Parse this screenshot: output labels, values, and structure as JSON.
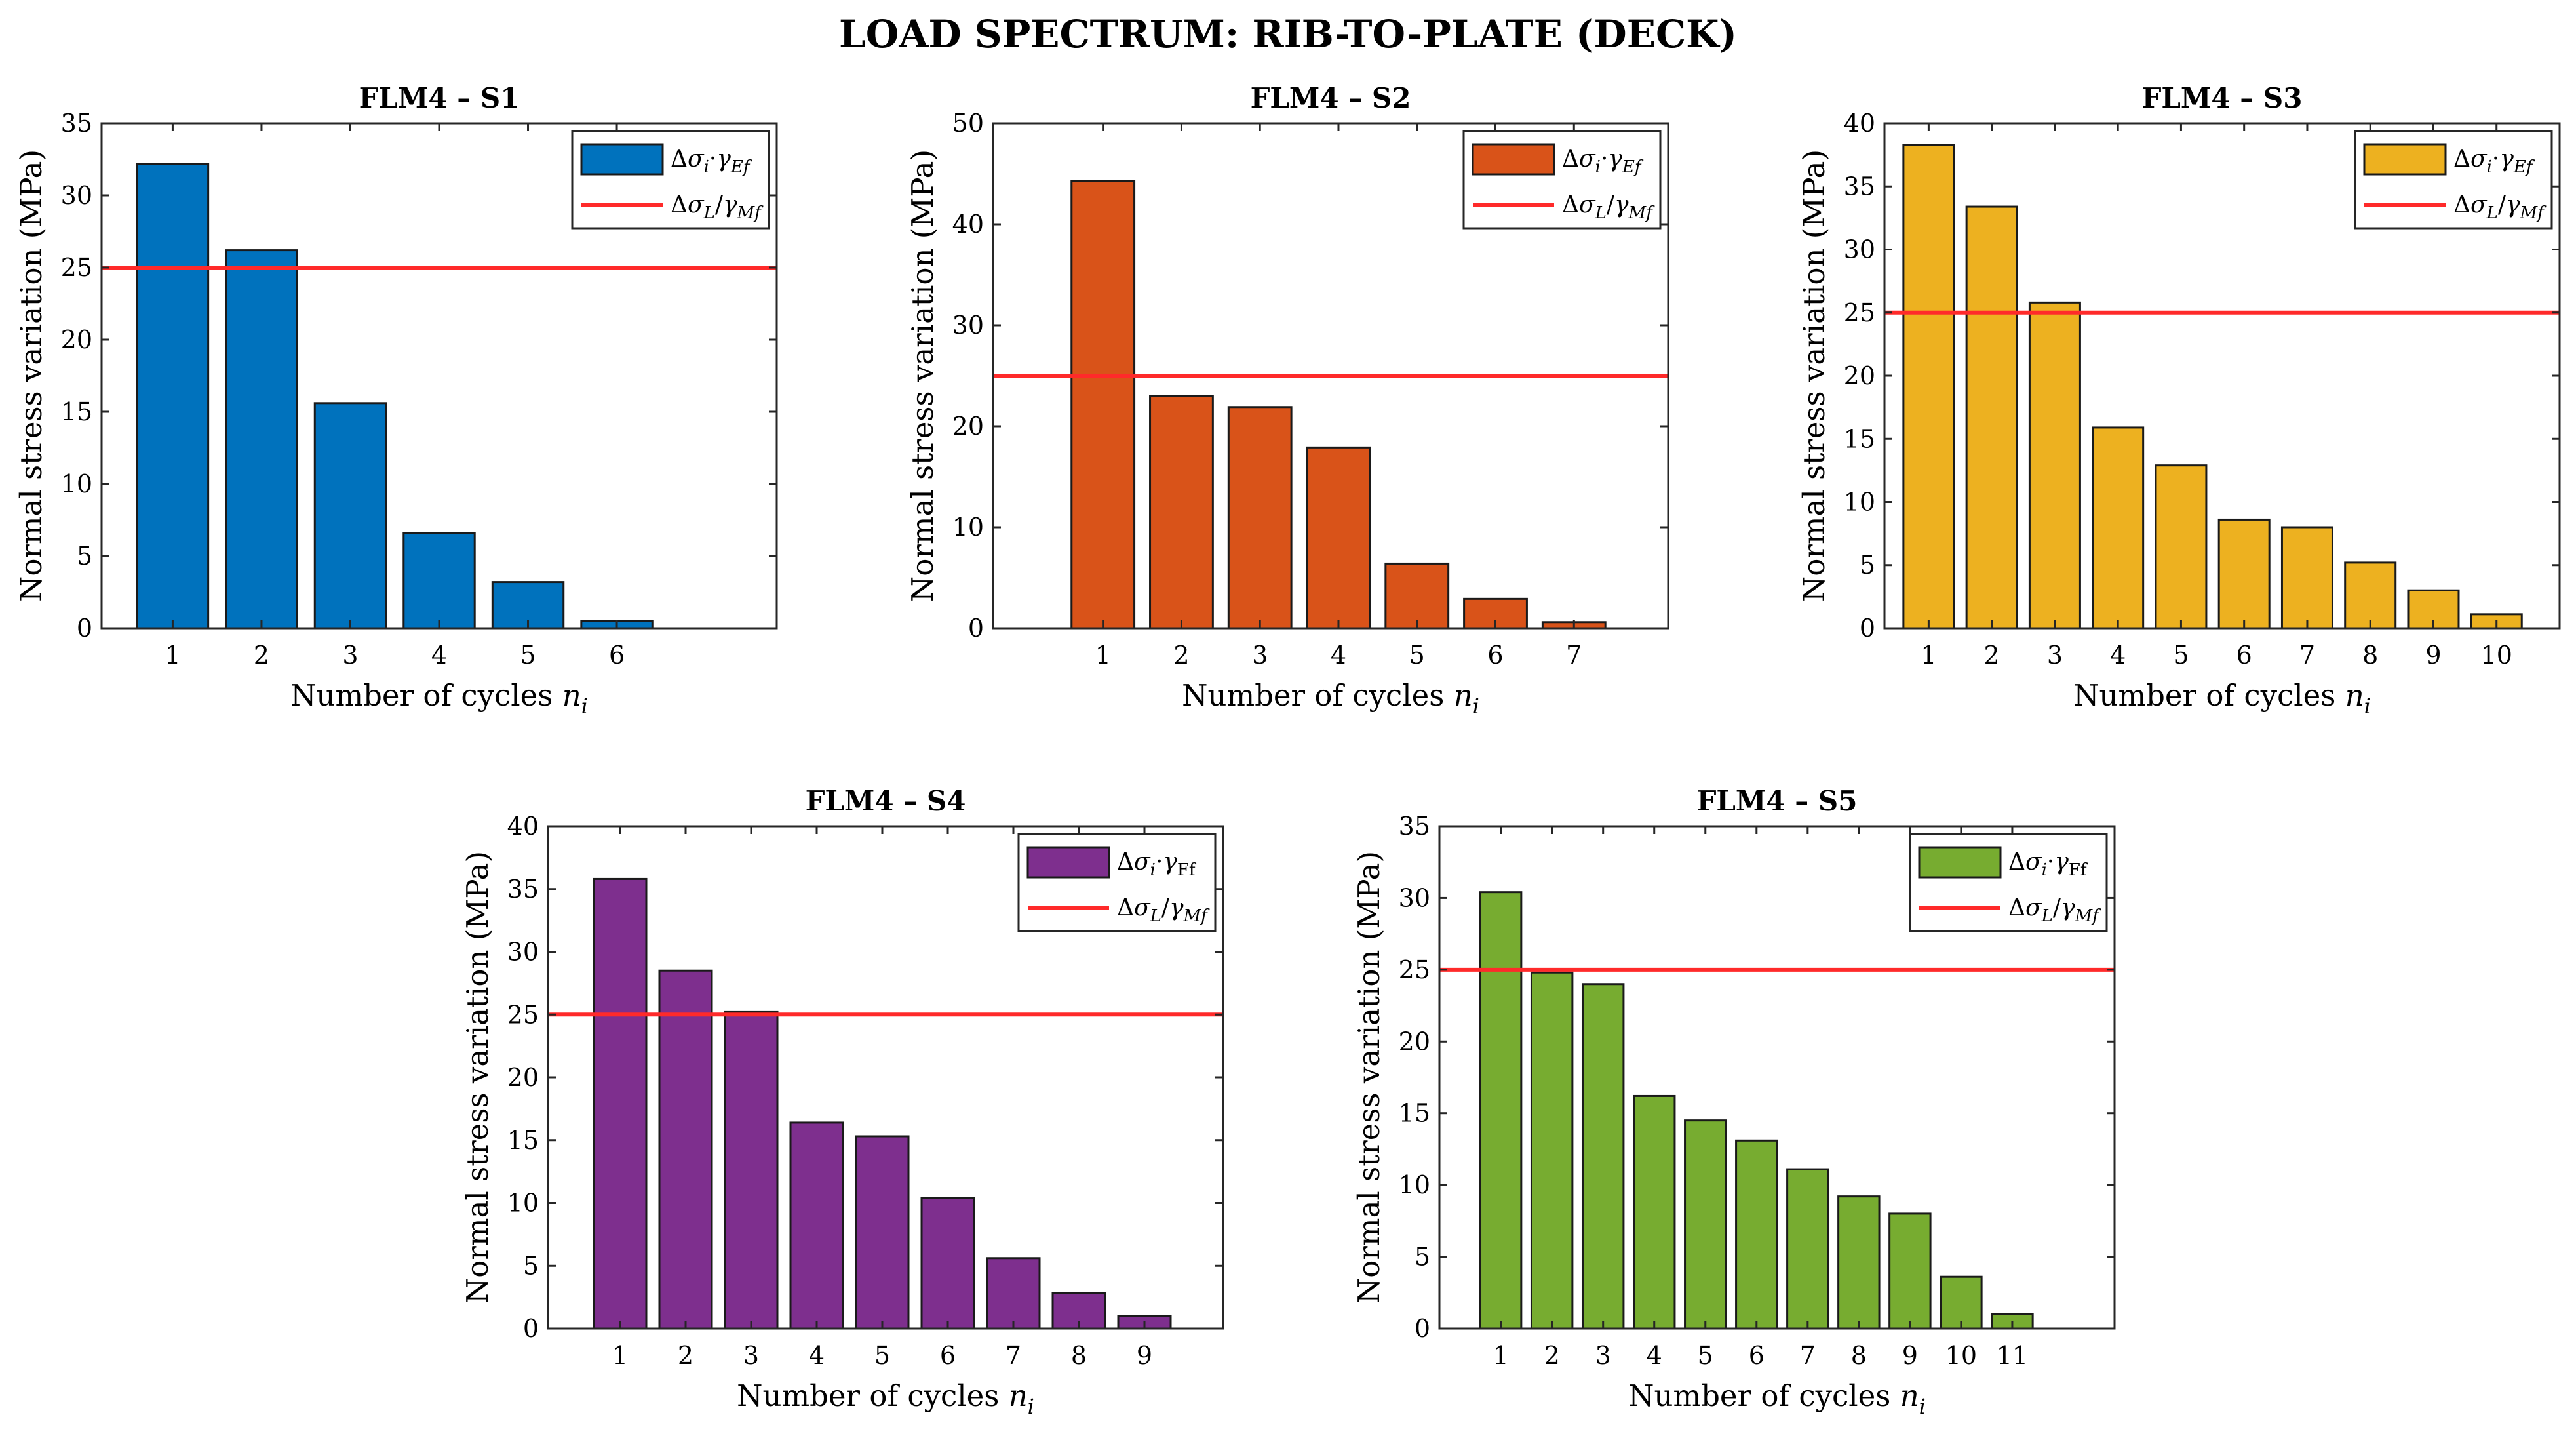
{
  "title": "LOAD SPECTRUM: RIB-TO-PLATE (DECK)",
  "legend": {
    "bar_delta": "Δ",
    "bar_sigma": "σ",
    "bar_sub_i": "i",
    "bar_dot": "·",
    "bar_gamma": "γ",
    "bar_sub_Ef": "Ef",
    "bar_sub_Ff": "Ff",
    "line_delta": "Δ",
    "line_sigma": "σ",
    "line_sub_L": "L",
    "line_slash": "/",
    "line_gamma": "γ",
    "line_sub_Mf": "Mf"
  },
  "chart_data": [
    {
      "type": "bar",
      "title": "FLM4 – S1",
      "xlabel": "Number of cycles",
      "xlabel_var": "n",
      "xlabel_sub": "i",
      "ylabel": "Normal stress variation (MPa)",
      "categories": [
        "1",
        "2",
        "3",
        "4",
        "5",
        "6"
      ],
      "values": [
        32.2,
        26.2,
        15.6,
        6.6,
        3.2,
        0.5
      ],
      "ylim": [
        0,
        35
      ],
      "yticks": [
        "0",
        "5",
        "10",
        "15",
        "20",
        "25",
        "30",
        "35"
      ],
      "xlim": [
        0.2,
        7.8
      ],
      "threshold": 25,
      "color": "#0072BD",
      "legend_sub": "Ef"
    },
    {
      "type": "bar",
      "title": "FLM4 – S2",
      "xlabel": "Number of cycles",
      "xlabel_var": "n",
      "xlabel_sub": "i",
      "ylabel": "Normal stress variation (MPa)",
      "categories": [
        "1",
        "2",
        "3",
        "4",
        "5",
        "6",
        "7"
      ],
      "values": [
        44.3,
        23.0,
        21.9,
        17.9,
        6.4,
        2.9,
        0.6
      ],
      "ylim": [
        0,
        50
      ],
      "yticks": [
        "0",
        "10",
        "20",
        "30",
        "40",
        "50"
      ],
      "xlim": [
        -0.4,
        8.2
      ],
      "threshold": 25,
      "color": "#D95319",
      "legend_sub": "Ef"
    },
    {
      "type": "bar",
      "title": "FLM4 – S3",
      "xlabel": "Number of cycles",
      "xlabel_var": "n",
      "xlabel_sub": "i",
      "ylabel": "Normal stress variation (MPa)",
      "categories": [
        "1",
        "2",
        "3",
        "4",
        "5",
        "6",
        "7",
        "8",
        "9",
        "10"
      ],
      "values": [
        38.3,
        33.4,
        25.8,
        15.9,
        12.9,
        8.6,
        8.0,
        5.2,
        3.0,
        1.1
      ],
      "ylim": [
        0,
        40
      ],
      "yticks": [
        "0",
        "5",
        "10",
        "15",
        "20",
        "25",
        "30",
        "35",
        "40"
      ],
      "xlim": [
        0.3,
        11.0
      ],
      "threshold": 25,
      "color": "#EDB120",
      "legend_sub": "Ef"
    },
    {
      "type": "bar",
      "title": "FLM4 – S4",
      "xlabel": "Number of cycles",
      "xlabel_var": "n",
      "xlabel_sub": "i",
      "ylabel": "Normal stress variation (MPa)",
      "categories": [
        "1",
        "2",
        "3",
        "4",
        "5",
        "6",
        "7",
        "8",
        "9"
      ],
      "values": [
        35.8,
        28.5,
        25.2,
        16.4,
        15.3,
        10.4,
        5.6,
        2.8,
        1.0
      ],
      "ylim": [
        0,
        40
      ],
      "yticks": [
        "0",
        "5",
        "10",
        "15",
        "20",
        "25",
        "30",
        "35",
        "40"
      ],
      "xlim": [
        -0.1,
        10.2
      ],
      "threshold": 25,
      "color": "#7E2F8E",
      "legend_sub": "Ff"
    },
    {
      "type": "bar",
      "title": "FLM4 – S5",
      "xlabel": "Number of cycles",
      "xlabel_var": "n",
      "xlabel_sub": "i",
      "ylabel": "Normal stress variation (MPa)",
      "categories": [
        "1",
        "2",
        "3",
        "4",
        "5",
        "6",
        "7",
        "8",
        "9",
        "10",
        "11"
      ],
      "values": [
        30.4,
        24.8,
        24.0,
        16.2,
        14.5,
        13.1,
        11.1,
        9.2,
        8.0,
        3.6,
        1.0
      ],
      "ylim": [
        0,
        35
      ],
      "yticks": [
        "0",
        "5",
        "10",
        "15",
        "20",
        "25",
        "30",
        "35"
      ],
      "xlim": [
        -0.2,
        13.0
      ],
      "threshold": 25,
      "color": "#77AC30",
      "legend_sub": "Ff"
    }
  ]
}
